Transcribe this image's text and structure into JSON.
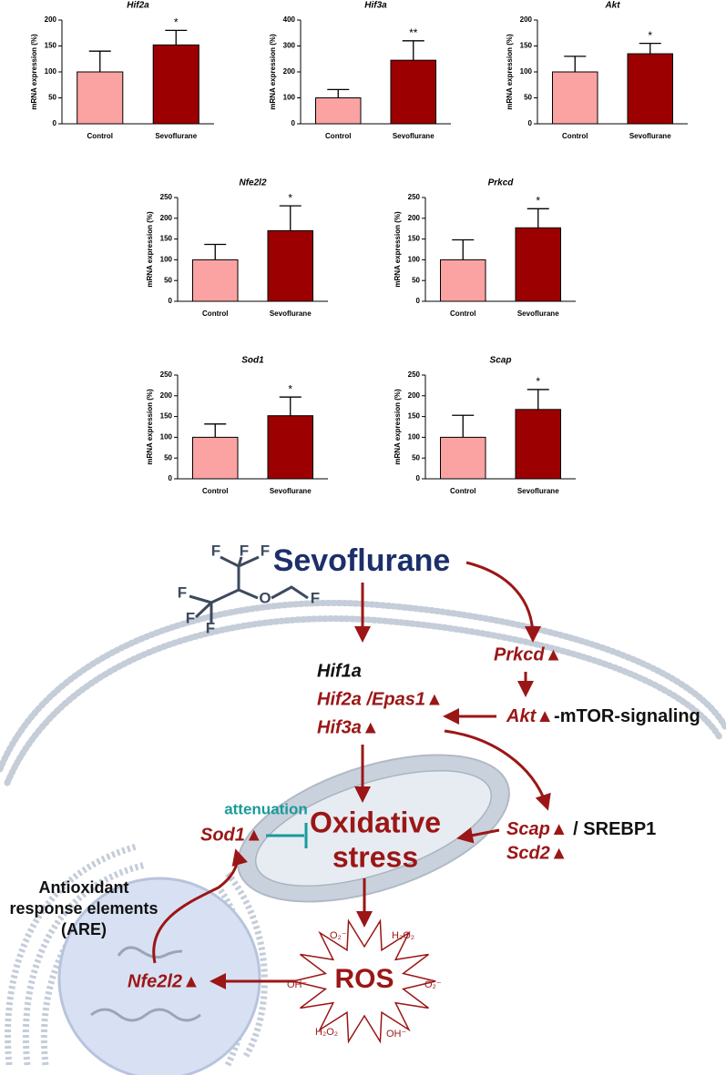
{
  "chart_data": [
    {
      "type": "bar",
      "title": "Hif2a",
      "ylabel": "mRNA expression (%)",
      "categories": [
        "Control",
        "Sevoflurane"
      ],
      "values": [
        100,
        152
      ],
      "errors": [
        40,
        28
      ],
      "colors": [
        "#fba3a3",
        "#9c0000"
      ],
      "ylim": [
        0,
        200
      ],
      "yticks": [
        0,
        50,
        100,
        150,
        200
      ],
      "annotation": "*"
    },
    {
      "type": "bar",
      "title": "Hif3a",
      "ylabel": "mRNA expression (%)",
      "categories": [
        "Control",
        "Sevoflurane"
      ],
      "values": [
        100,
        245
      ],
      "errors": [
        32,
        75
      ],
      "colors": [
        "#fba3a3",
        "#9c0000"
      ],
      "ylim": [
        0,
        400
      ],
      "yticks": [
        0,
        100,
        200,
        300,
        400
      ],
      "annotation": "**"
    },
    {
      "type": "bar",
      "title": "Akt",
      "ylabel": "mRNA expression (%)",
      "categories": [
        "Control",
        "Sevoflurane"
      ],
      "values": [
        100,
        135
      ],
      "errors": [
        30,
        20
      ],
      "colors": [
        "#fba3a3",
        "#9c0000"
      ],
      "ylim": [
        0,
        200
      ],
      "yticks": [
        0,
        50,
        100,
        150,
        200
      ],
      "annotation": "*"
    },
    {
      "type": "bar",
      "title": "Nfe2l2",
      "ylabel": "mRNA expression (%)",
      "categories": [
        "Control",
        "Sevoflurane"
      ],
      "values": [
        100,
        170
      ],
      "errors": [
        37,
        60
      ],
      "colors": [
        "#fba3a3",
        "#9c0000"
      ],
      "ylim": [
        0,
        250
      ],
      "yticks": [
        0,
        50,
        100,
        150,
        200,
        250
      ],
      "annotation": "*"
    },
    {
      "type": "bar",
      "title": "Prkcd",
      "ylabel": "mRNA expression (%)",
      "categories": [
        "Control",
        "Sevoflurane"
      ],
      "values": [
        100,
        177
      ],
      "errors": [
        48,
        46
      ],
      "colors": [
        "#fba3a3",
        "#9c0000"
      ],
      "ylim": [
        0,
        250
      ],
      "yticks": [
        0,
        50,
        100,
        150,
        200,
        250
      ],
      "annotation": "*"
    },
    {
      "type": "bar",
      "title": "Sod1",
      "ylabel": "mRNA expression (%)",
      "categories": [
        "Control",
        "Sevoflurane"
      ],
      "values": [
        100,
        152
      ],
      "errors": [
        32,
        45
      ],
      "colors": [
        "#fba3a3",
        "#9c0000"
      ],
      "ylim": [
        0,
        250
      ],
      "yticks": [
        0,
        50,
        100,
        150,
        200,
        250
      ],
      "annotation": "*"
    },
    {
      "type": "bar",
      "title": "Scap",
      "ylabel": "mRNA expression (%)",
      "categories": [
        "Control",
        "Sevoflurane"
      ],
      "values": [
        100,
        167
      ],
      "errors": [
        53,
        48
      ],
      "colors": [
        "#fba3a3",
        "#9c0000"
      ],
      "ylim": [
        0,
        250
      ],
      "yticks": [
        0,
        50,
        100,
        150,
        200,
        250
      ],
      "annotation": "*"
    }
  ],
  "diagram": {
    "drug": "Sevoflurane",
    "atoms": [
      "F",
      "F",
      "F",
      "F",
      "F",
      "F",
      "O",
      "F"
    ],
    "hif1a": "Hif1a",
    "hif2a": "Hif2a /Epas1▲",
    "hif3a": "Hif3a▲",
    "prkcd": "Prkcd▲",
    "akt": "Akt▲",
    "akt_pathway": "-mTOR-signaling",
    "scap": "Scap▲",
    "srebp1": " / SREBP1",
    "scd2": "Scd2▲",
    "oxidative": [
      "Oxidative",
      "stress"
    ],
    "attenuation": "attenuation",
    "sod1": "Sod1▲",
    "are": [
      "Antioxidant",
      "response elements",
      "(ARE)"
    ],
    "nfe2l2": "Nfe2l2▲",
    "ros": "ROS",
    "species": [
      "O₂⁻",
      "H₂O₂",
      "OH⁻",
      "O₂⁻",
      "H₂O₂",
      "OH⁻"
    ]
  }
}
